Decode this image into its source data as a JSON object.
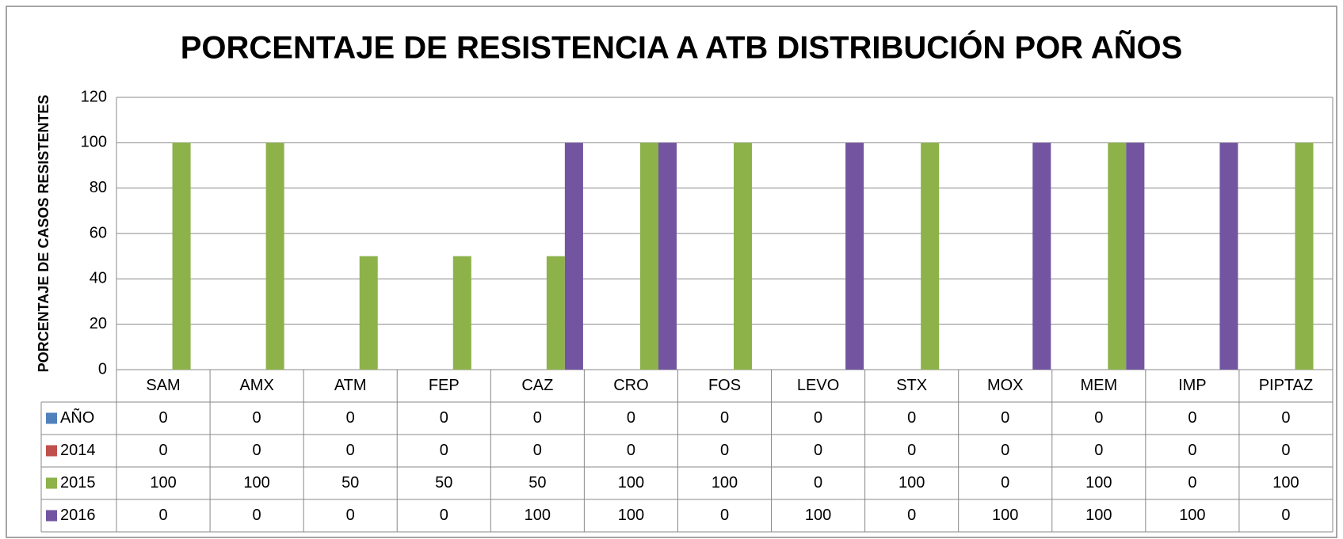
{
  "chart_data": {
    "type": "bar",
    "title": "PORCENTAJE DE RESISTENCIA A ATB DISTRIBUCIÓN POR AÑOS",
    "y_label": "PORCENTAJE DE CASOS RESISTENTES",
    "categories": [
      "SAM",
      "AMX",
      "ATM",
      "FEP",
      "CAZ",
      "CRO",
      "FOS",
      "LEVO",
      "STX",
      "MOX",
      "MEM",
      "IMP",
      "PIPTAZ"
    ],
    "series": [
      {
        "name": "AÑO",
        "color": "#4f81bd",
        "values": [
          0,
          0,
          0,
          0,
          0,
          0,
          0,
          0,
          0,
          0,
          0,
          0,
          0
        ]
      },
      {
        "name": "2014",
        "color": "#c0504d",
        "values": [
          0,
          0,
          0,
          0,
          0,
          0,
          0,
          0,
          0,
          0,
          0,
          0,
          0
        ]
      },
      {
        "name": "2015",
        "color": "#8db249",
        "values": [
          100,
          100,
          50,
          50,
          50,
          100,
          100,
          0,
          100,
          0,
          100,
          0,
          100
        ]
      },
      {
        "name": "2016",
        "color": "#7254a0",
        "values": [
          0,
          0,
          0,
          0,
          100,
          100,
          0,
          100,
          0,
          100,
          100,
          100,
          0
        ]
      }
    ],
    "ylim": [
      0,
      120
    ],
    "yticks": [
      0,
      20,
      40,
      60,
      80,
      100,
      120
    ],
    "grid": true
  }
}
